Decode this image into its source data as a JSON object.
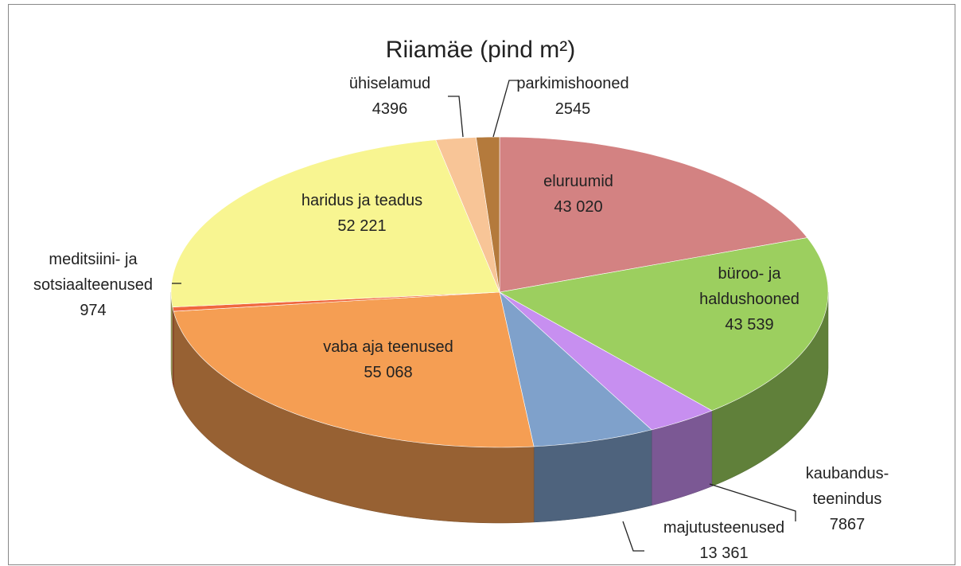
{
  "chart_data": {
    "type": "pie3d",
    "title": "Riiamäe (pind m²)",
    "categories": [
      "eluruumid",
      "büroo- ja haldushooned",
      "kaubandus-teenindus",
      "majutusteenused",
      "vaba aja teenused",
      "meditsiini- ja sotsiaalteenused",
      "haridus ja teadus",
      "ühiselamud",
      "parkimishooned"
    ],
    "values": [
      43020,
      43539,
      7867,
      13361,
      55068,
      974,
      52221,
      4396,
      2545
    ],
    "value_labels": [
      "43 020",
      "43 539",
      "7867",
      "13 361",
      "55 068",
      "974",
      "52 221",
      "4396",
      "2545"
    ],
    "colors": [
      "#d38282",
      "#9ccf5f",
      "#c78ff0",
      "#7fa1cb",
      "#f59e53",
      "#f0683e",
      "#f8f591",
      "#f8c597",
      "#b47a3c"
    ]
  }
}
